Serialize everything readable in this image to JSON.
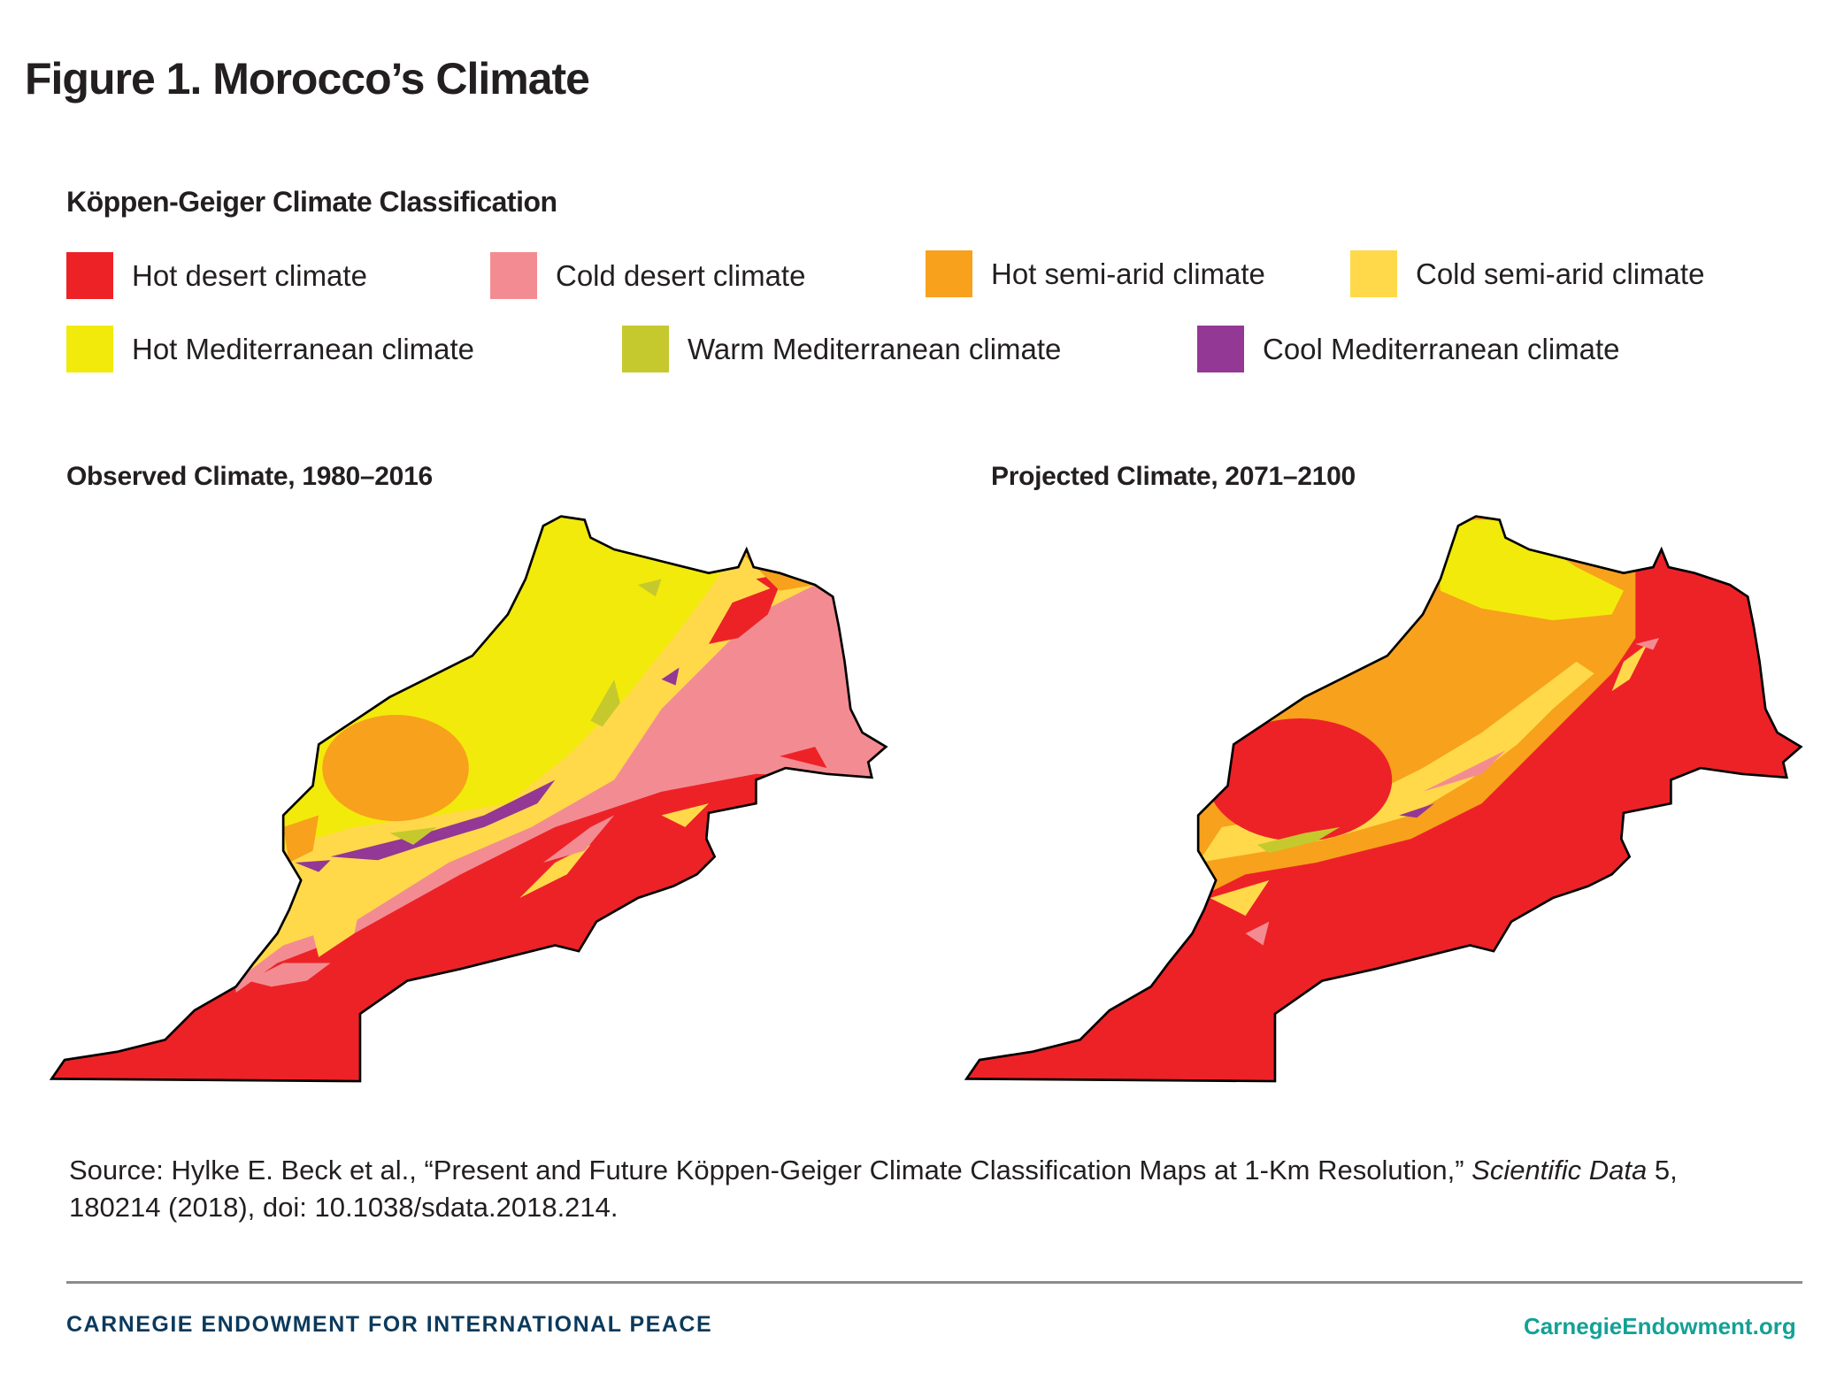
{
  "title": "Figure 1. Morocco’s Climate",
  "legend": {
    "title": "Köppen-Geiger Climate Classification",
    "items": [
      {
        "label": "Hot desert climate",
        "color": "#ed2227"
      },
      {
        "label": "Cold desert climate",
        "color": "#f38c92"
      },
      {
        "label": "Hot semi-arid climate",
        "color": "#f8a11c"
      },
      {
        "label": "Cold semi-arid climate",
        "color": "#ffd94a"
      },
      {
        "label": "Hot Mediterranean climate",
        "color": "#f2ea0b"
      },
      {
        "label": "Warm Mediterranean climate",
        "color": "#c6c92d"
      },
      {
        "label": "Cool Mediterranean climate",
        "color": "#933894"
      }
    ]
  },
  "maps": [
    {
      "title": "Observed Climate, 1980–2016"
    },
    {
      "title": "Projected Climate, 2071–2100"
    }
  ],
  "source": {
    "prefix": "Source: Hylke E. Beck et al., “Present and Future Köppen-Geiger Climate Classification Maps at 1-Km Resolution,” ",
    "journal": "Scientific Data",
    "suffix": " 5, 180214 (2018), doi: 10.1038/sdata.2018.214."
  },
  "footer": {
    "organization": "CARNEGIE ENDOWMENT FOR INTERNATIONAL PEACE",
    "website": "CarnegieEndowment.org"
  }
}
